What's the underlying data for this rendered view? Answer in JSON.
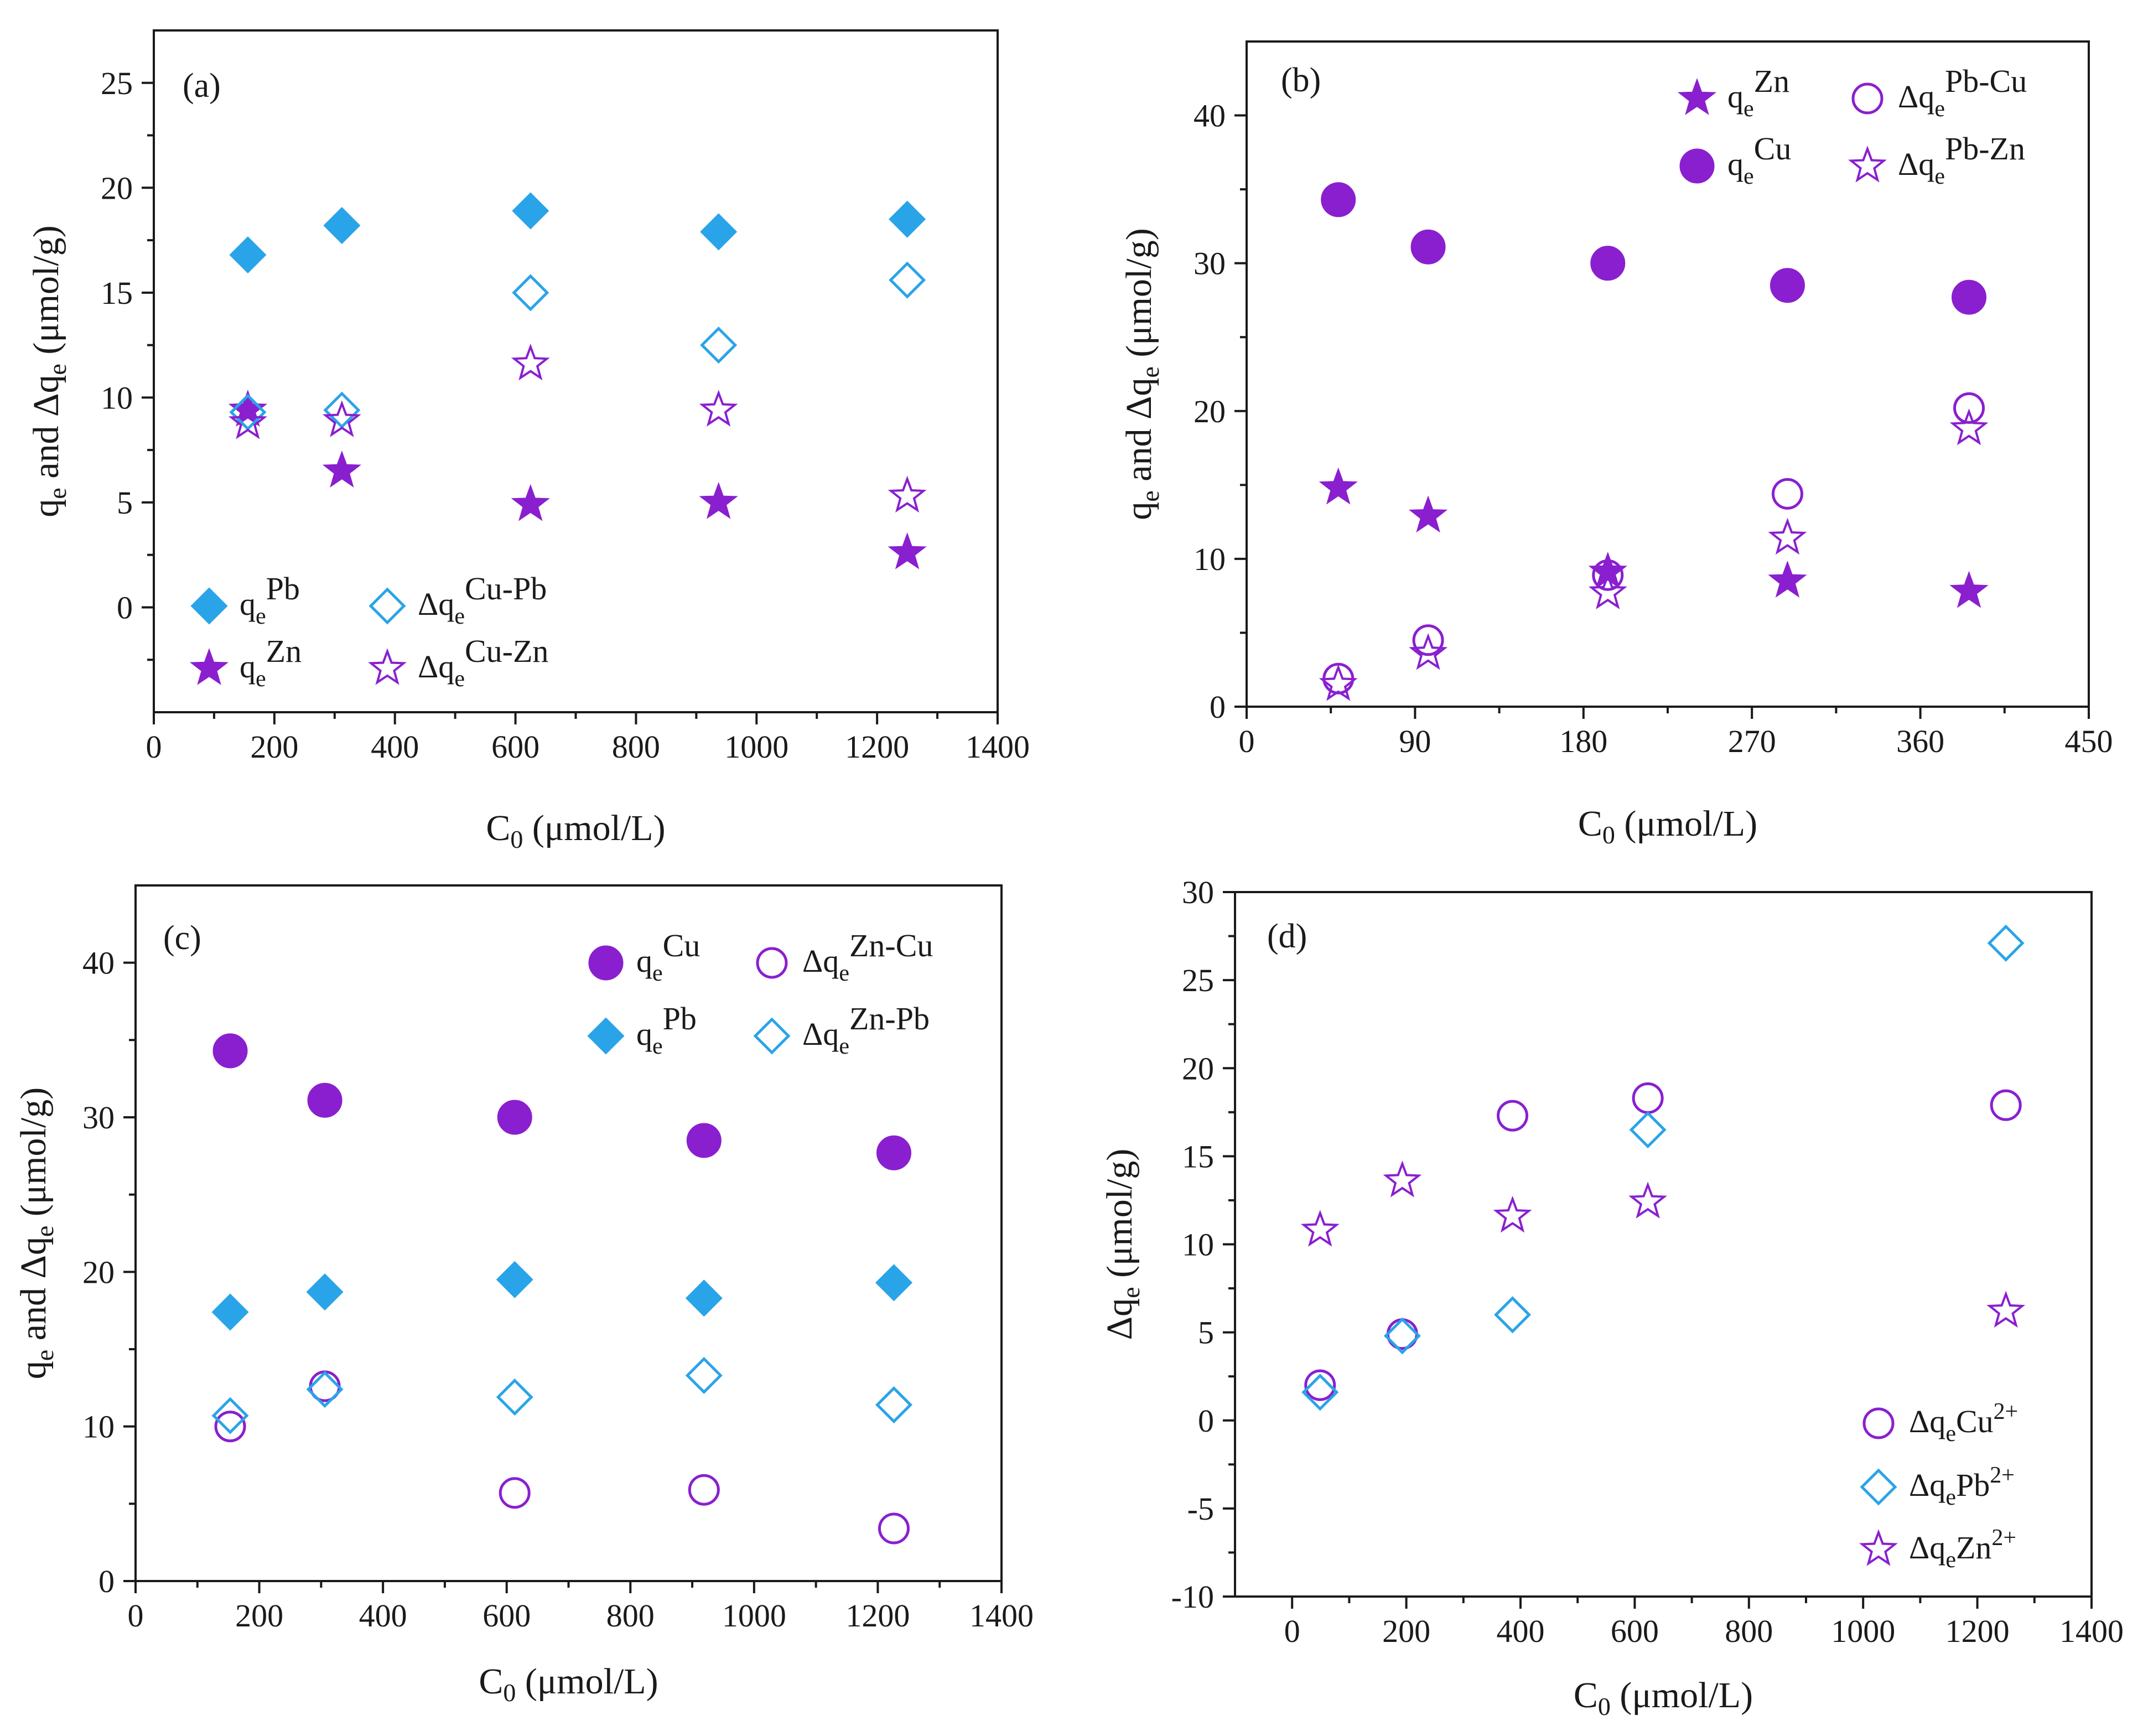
{
  "colors": {
    "blue": "#2aa4e8",
    "purple": "#8a1fcf",
    "axis": "#1a1a1a"
  },
  "chart_data": [
    {
      "type": "scatter",
      "panel_label": "(a)",
      "xlabel": "C0 (μmol/L)",
      "ylabel": "qe and Δqe (μmol/g)",
      "xlim": [
        0,
        1400
      ],
      "ylim": [
        -5,
        27.5
      ],
      "xticks": [
        0,
        200,
        400,
        600,
        800,
        1000,
        1200,
        1400
      ],
      "yticks": [
        0,
        5,
        10,
        15,
        20,
        25
      ],
      "legend": {
        "position": "bottom-left",
        "columns": 2
      },
      "series": [
        {
          "name": "qePb",
          "label_base": "q",
          "label_sub": "e",
          "label_sup": "Pb",
          "marker": "filled-diamond",
          "color": "#2aa4e8",
          "x": [
            156,
            312,
            625,
            937,
            1250
          ],
          "y": [
            16.8,
            18.2,
            18.9,
            17.9,
            18.5
          ]
        },
        {
          "name": "qeZn",
          "label_base": "q",
          "label_sub": "e",
          "label_sup": "Zn",
          "marker": "filled-star",
          "color": "#8a1fcf",
          "x": [
            156,
            312,
            625,
            937,
            1250
          ],
          "y": [
            9.4,
            6.5,
            4.9,
            5.0,
            2.6
          ]
        },
        {
          "name": "Δqe Cu-Pb",
          "label_base": "Δq",
          "label_sub": "e",
          "label_sup": "Cu-Pb",
          "marker": "open-diamond",
          "color": "#2aa4e8",
          "x": [
            156,
            312,
            625,
            937,
            1250
          ],
          "y": [
            9.3,
            9.4,
            15.0,
            12.5,
            15.6
          ]
        },
        {
          "name": "Δqe Cu-Zn",
          "label_base": "Δq",
          "label_sub": "e",
          "label_sup": "Cu-Zn",
          "marker": "open-star",
          "color": "#8a1fcf",
          "x": [
            156,
            312,
            625,
            937,
            1250
          ],
          "y": [
            8.8,
            8.9,
            11.6,
            9.4,
            5.3
          ]
        }
      ]
    },
    {
      "type": "scatter",
      "panel_label": "(b)",
      "xlabel": "C0 (μmol/L)",
      "ylabel": "qe and Δqe (μmol/g)",
      "xlim": [
        0,
        450
      ],
      "ylim": [
        0,
        45
      ],
      "xticks": [
        0,
        90,
        180,
        270,
        360,
        450
      ],
      "yticks": [
        0,
        10,
        20,
        30,
        40
      ],
      "legend": {
        "position": "top-right",
        "columns": 2
      },
      "series": [
        {
          "name": "qeZn",
          "label_base": "q",
          "label_sub": "e",
          "label_sup": "Zn",
          "marker": "filled-star",
          "color": "#8a1fcf",
          "x": [
            49,
            97,
            193,
            289,
            386
          ],
          "y": [
            14.8,
            12.9,
            9.1,
            8.5,
            7.8
          ]
        },
        {
          "name": "qeCu",
          "label_base": "q",
          "label_sub": "e",
          "label_sup": "Cu",
          "marker": "filled-circle",
          "color": "#8a1fcf",
          "x": [
            49,
            97,
            193,
            289,
            386
          ],
          "y": [
            34.3,
            31.1,
            30.0,
            28.5,
            27.7
          ]
        },
        {
          "name": "Δqe Pb-Cu",
          "label_base": "Δq",
          "label_sub": "e",
          "label_sup": "Pb-Cu",
          "marker": "open-circle",
          "color": "#8a1fcf",
          "x": [
            49,
            97,
            193,
            289,
            386
          ],
          "y": [
            1.9,
            4.5,
            8.9,
            14.4,
            20.2
          ]
        },
        {
          "name": "Δqe Pb-Zn",
          "label_base": "Δq",
          "label_sub": "e",
          "label_sup": "Pb-Zn",
          "marker": "open-star",
          "color": "#8a1fcf",
          "x": [
            49,
            97,
            193,
            289,
            386
          ],
          "y": [
            1.5,
            3.6,
            7.7,
            11.4,
            18.8
          ]
        }
      ]
    },
    {
      "type": "scatter",
      "panel_label": "(c)",
      "xlabel": "C0 (μmol/L)",
      "ylabel": "qe and Δqe (μmol/g)",
      "xlim": [
        0,
        1400
      ],
      "ylim": [
        0,
        45
      ],
      "xticks": [
        0,
        200,
        400,
        600,
        800,
        1000,
        1200,
        1400
      ],
      "yticks": [
        0,
        10,
        20,
        30,
        40
      ],
      "legend": {
        "position": "top-right",
        "columns": 2
      },
      "series": [
        {
          "name": "qeCu",
          "label_base": "q",
          "label_sub": "e",
          "label_sup": "Cu",
          "marker": "filled-circle",
          "color": "#8a1fcf",
          "x": [
            153,
            306,
            613,
            919,
            1226
          ],
          "y": [
            34.3,
            31.1,
            30.0,
            28.5,
            27.7
          ]
        },
        {
          "name": "qePb",
          "label_base": "q",
          "label_sub": "e",
          "label_sup": "Pb",
          "marker": "filled-diamond",
          "color": "#2aa4e8",
          "x": [
            153,
            306,
            613,
            919,
            1226
          ],
          "y": [
            17.4,
            18.7,
            19.5,
            18.3,
            19.3
          ]
        },
        {
          "name": "Δqe Zn-Cu",
          "label_base": "Δq",
          "label_sub": "e",
          "label_sup": "Zn-Cu",
          "marker": "open-circle",
          "color": "#8a1fcf",
          "x": [
            153,
            306,
            613,
            919,
            1226
          ],
          "y": [
            10.0,
            12.6,
            5.7,
            5.9,
            3.4
          ]
        },
        {
          "name": "Δqe Zn-Pb",
          "label_base": "Δq",
          "label_sub": "e",
          "label_sup": "Zn-Pb",
          "marker": "open-diamond",
          "color": "#2aa4e8",
          "x": [
            153,
            306,
            613,
            919,
            1226
          ],
          "y": [
            10.7,
            12.4,
            11.9,
            13.3,
            11.4
          ]
        }
      ]
    },
    {
      "type": "scatter",
      "panel_label": "(d)",
      "xlabel": "C0 (μmol/L)",
      "ylabel": "Δqe (μmol/g)",
      "xlim": [
        -100,
        1400
      ],
      "ylim": [
        -10,
        30
      ],
      "xticks": [
        0,
        200,
        400,
        600,
        800,
        1000,
        1200,
        1400
      ],
      "yticks": [
        -10,
        -5,
        0,
        5,
        10,
        15,
        20,
        25,
        30
      ],
      "legend": {
        "position": "bottom-right",
        "columns": 1
      },
      "series": [
        {
          "name": "ΔqeCu2+",
          "label_base": "Δq",
          "label_sub": "e",
          "label_mid": "Cu",
          "label_sup": "2+",
          "marker": "open-circle",
          "color": "#8a1fcf",
          "x": [
            49,
            193,
            386,
            623,
            1250
          ],
          "y": [
            2.0,
            4.9,
            17.3,
            18.3,
            17.9
          ]
        },
        {
          "name": "ΔqePb2+",
          "label_base": "Δq",
          "label_sub": "e",
          "label_mid": "Pb",
          "label_sup": "2+",
          "marker": "open-diamond",
          "color": "#2aa4e8",
          "x": [
            49,
            193,
            386,
            623,
            1250
          ],
          "y": [
            1.6,
            4.8,
            6.0,
            16.5,
            27.1
          ]
        },
        {
          "name": "ΔqeZn2+",
          "label_base": "Δq",
          "label_sub": "e",
          "label_mid": "Zn",
          "label_sup": "2+",
          "marker": "open-star",
          "color": "#8a1fcf",
          "x": [
            49,
            193,
            386,
            623,
            1250
          ],
          "y": [
            10.8,
            13.6,
            11.6,
            12.4,
            6.2
          ]
        }
      ]
    }
  ]
}
